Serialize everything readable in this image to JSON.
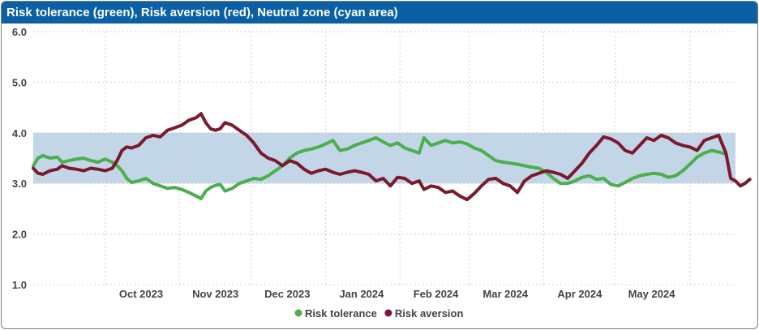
{
  "chart_data": {
    "type": "line",
    "title": "Risk tolerance (green), Risk aversion (red), Neutral zone (cyan area)",
    "ylim": [
      1.0,
      6.0
    ],
    "y_ticks": [
      "1.0",
      "2.0",
      "3.0",
      "4.0",
      "5.0",
      "6.0"
    ],
    "x_ticks": [
      "Oct 2023",
      "Nov 2023",
      "Dec 2023",
      "Jan 2024",
      "Feb 2024",
      "Mar 2024",
      "Apr 2024",
      "May 2024"
    ],
    "x_start": "2023-09-01",
    "x_end": "2024-06-20",
    "neutral_zone": [
      3.0,
      4.0
    ],
    "grid": true,
    "legend_position": "bottom",
    "series": [
      {
        "name": "Risk tolerance",
        "color": "#4cae4c",
        "points": [
          [
            "2023-09-01",
            3.35
          ],
          [
            "2023-09-03",
            3.5
          ],
          [
            "2023-09-05",
            3.55
          ],
          [
            "2023-09-08",
            3.5
          ],
          [
            "2023-09-11",
            3.52
          ],
          [
            "2023-09-13",
            3.42
          ],
          [
            "2023-09-16",
            3.45
          ],
          [
            "2023-09-19",
            3.48
          ],
          [
            "2023-09-22",
            3.5
          ],
          [
            "2023-09-25",
            3.45
          ],
          [
            "2023-09-28",
            3.42
          ],
          [
            "2023-10-01",
            3.48
          ],
          [
            "2023-10-04",
            3.42
          ],
          [
            "2023-10-06",
            3.35
          ],
          [
            "2023-10-08",
            3.25
          ],
          [
            "2023-10-10",
            3.1
          ],
          [
            "2023-10-12",
            3.02
          ],
          [
            "2023-10-15",
            3.05
          ],
          [
            "2023-10-18",
            3.1
          ],
          [
            "2023-10-21",
            3.0
          ],
          [
            "2023-10-24",
            2.95
          ],
          [
            "2023-10-27",
            2.9
          ],
          [
            "2023-10-30",
            2.92
          ],
          [
            "2023-11-02",
            2.88
          ],
          [
            "2023-11-05",
            2.82
          ],
          [
            "2023-11-08",
            2.75
          ],
          [
            "2023-11-10",
            2.7
          ],
          [
            "2023-11-12",
            2.85
          ],
          [
            "2023-11-14",
            2.92
          ],
          [
            "2023-11-16",
            2.96
          ],
          [
            "2023-11-18",
            2.98
          ],
          [
            "2023-11-20",
            2.85
          ],
          [
            "2023-11-23",
            2.9
          ],
          [
            "2023-11-26",
            3.0
          ],
          [
            "2023-11-29",
            3.05
          ],
          [
            "2023-12-02",
            3.1
          ],
          [
            "2023-12-05",
            3.08
          ],
          [
            "2023-12-08",
            3.15
          ],
          [
            "2023-12-11",
            3.25
          ],
          [
            "2023-12-14",
            3.35
          ],
          [
            "2023-12-17",
            3.5
          ],
          [
            "2023-12-20",
            3.6
          ],
          [
            "2023-12-23",
            3.65
          ],
          [
            "2023-12-26",
            3.68
          ],
          [
            "2023-12-29",
            3.72
          ],
          [
            "2024-01-01",
            3.78
          ],
          [
            "2024-01-04",
            3.85
          ],
          [
            "2024-01-07",
            3.65
          ],
          [
            "2024-01-10",
            3.68
          ],
          [
            "2024-01-13",
            3.75
          ],
          [
            "2024-01-16",
            3.8
          ],
          [
            "2024-01-19",
            3.85
          ],
          [
            "2024-01-22",
            3.9
          ],
          [
            "2024-01-25",
            3.82
          ],
          [
            "2024-01-28",
            3.75
          ],
          [
            "2024-01-31",
            3.8
          ],
          [
            "2024-02-03",
            3.7
          ],
          [
            "2024-02-06",
            3.65
          ],
          [
            "2024-02-09",
            3.6
          ],
          [
            "2024-02-11",
            3.9
          ],
          [
            "2024-02-14",
            3.75
          ],
          [
            "2024-02-17",
            3.8
          ],
          [
            "2024-02-20",
            3.85
          ],
          [
            "2024-02-23",
            3.8
          ],
          [
            "2024-02-26",
            3.82
          ],
          [
            "2024-02-29",
            3.78
          ],
          [
            "2024-03-03",
            3.7
          ],
          [
            "2024-03-06",
            3.65
          ],
          [
            "2024-03-09",
            3.55
          ],
          [
            "2024-03-12",
            3.45
          ],
          [
            "2024-03-15",
            3.42
          ],
          [
            "2024-03-18",
            3.4
          ],
          [
            "2024-03-21",
            3.38
          ],
          [
            "2024-03-24",
            3.35
          ],
          [
            "2024-03-27",
            3.32
          ],
          [
            "2024-03-30",
            3.3
          ],
          [
            "2024-04-02",
            3.22
          ],
          [
            "2024-04-05",
            3.1
          ],
          [
            "2024-04-08",
            3.0
          ],
          [
            "2024-04-11",
            3.0
          ],
          [
            "2024-04-14",
            3.05
          ],
          [
            "2024-04-17",
            3.12
          ],
          [
            "2024-04-20",
            3.15
          ],
          [
            "2024-04-23",
            3.08
          ],
          [
            "2024-04-26",
            3.1
          ],
          [
            "2024-04-29",
            2.98
          ],
          [
            "2024-05-02",
            2.95
          ],
          [
            "2024-05-05",
            3.02
          ],
          [
            "2024-05-08",
            3.1
          ],
          [
            "2024-05-11",
            3.15
          ],
          [
            "2024-05-14",
            3.18
          ],
          [
            "2024-05-17",
            3.2
          ],
          [
            "2024-05-20",
            3.18
          ],
          [
            "2024-05-23",
            3.12
          ],
          [
            "2024-05-26",
            3.15
          ],
          [
            "2024-05-29",
            3.25
          ],
          [
            "2024-06-01",
            3.38
          ],
          [
            "2024-06-04",
            3.52
          ],
          [
            "2024-06-07",
            3.6
          ],
          [
            "2024-06-10",
            3.65
          ],
          [
            "2024-06-13",
            3.62
          ],
          [
            "2024-06-16",
            3.58
          ]
        ]
      },
      {
        "name": "Risk aversion",
        "color": "#7b1a2e",
        "points": [
          [
            "2023-09-01",
            3.3
          ],
          [
            "2023-09-03",
            3.2
          ],
          [
            "2023-09-05",
            3.18
          ],
          [
            "2023-09-08",
            3.25
          ],
          [
            "2023-09-11",
            3.28
          ],
          [
            "2023-09-13",
            3.35
          ],
          [
            "2023-09-16",
            3.3
          ],
          [
            "2023-09-19",
            3.28
          ],
          [
            "2023-09-22",
            3.25
          ],
          [
            "2023-09-25",
            3.3
          ],
          [
            "2023-09-28",
            3.28
          ],
          [
            "2023-10-01",
            3.25
          ],
          [
            "2023-10-04",
            3.3
          ],
          [
            "2023-10-06",
            3.45
          ],
          [
            "2023-10-08",
            3.65
          ],
          [
            "2023-10-10",
            3.72
          ],
          [
            "2023-10-12",
            3.7
          ],
          [
            "2023-10-15",
            3.75
          ],
          [
            "2023-10-18",
            3.9
          ],
          [
            "2023-10-21",
            3.95
          ],
          [
            "2023-10-24",
            3.92
          ],
          [
            "2023-10-27",
            4.05
          ],
          [
            "2023-10-30",
            4.1
          ],
          [
            "2023-11-02",
            4.15
          ],
          [
            "2023-11-05",
            4.25
          ],
          [
            "2023-11-08",
            4.3
          ],
          [
            "2023-11-10",
            4.38
          ],
          [
            "2023-11-12",
            4.2
          ],
          [
            "2023-11-14",
            4.08
          ],
          [
            "2023-11-16",
            4.05
          ],
          [
            "2023-11-18",
            4.08
          ],
          [
            "2023-11-20",
            4.2
          ],
          [
            "2023-11-23",
            4.15
          ],
          [
            "2023-11-26",
            4.05
          ],
          [
            "2023-11-29",
            3.95
          ],
          [
            "2023-12-02",
            3.8
          ],
          [
            "2023-12-05",
            3.6
          ],
          [
            "2023-12-08",
            3.5
          ],
          [
            "2023-12-11",
            3.45
          ],
          [
            "2023-12-14",
            3.35
          ],
          [
            "2023-12-17",
            3.45
          ],
          [
            "2023-12-20",
            3.4
          ],
          [
            "2023-12-23",
            3.28
          ],
          [
            "2023-12-26",
            3.2
          ],
          [
            "2023-12-29",
            3.25
          ],
          [
            "2024-01-01",
            3.28
          ],
          [
            "2024-01-04",
            3.22
          ],
          [
            "2024-01-07",
            3.18
          ],
          [
            "2024-01-10",
            3.22
          ],
          [
            "2024-01-13",
            3.25
          ],
          [
            "2024-01-16",
            3.22
          ],
          [
            "2024-01-19",
            3.18
          ],
          [
            "2024-01-22",
            3.05
          ],
          [
            "2024-01-25",
            3.1
          ],
          [
            "2024-01-28",
            2.95
          ],
          [
            "2024-01-31",
            3.12
          ],
          [
            "2024-02-03",
            3.1
          ],
          [
            "2024-02-06",
            3.0
          ],
          [
            "2024-02-09",
            3.05
          ],
          [
            "2024-02-11",
            2.88
          ],
          [
            "2024-02-14",
            2.95
          ],
          [
            "2024-02-17",
            2.92
          ],
          [
            "2024-02-20",
            2.82
          ],
          [
            "2024-02-23",
            2.85
          ],
          [
            "2024-02-26",
            2.75
          ],
          [
            "2024-02-29",
            2.68
          ],
          [
            "2024-03-03",
            2.8
          ],
          [
            "2024-03-06",
            2.95
          ],
          [
            "2024-03-09",
            3.08
          ],
          [
            "2024-03-12",
            3.1
          ],
          [
            "2024-03-15",
            3.0
          ],
          [
            "2024-03-18",
            2.95
          ],
          [
            "2024-03-21",
            2.82
          ],
          [
            "2024-03-24",
            3.05
          ],
          [
            "2024-03-27",
            3.15
          ],
          [
            "2024-03-30",
            3.2
          ],
          [
            "2024-04-02",
            3.25
          ],
          [
            "2024-04-05",
            3.22
          ],
          [
            "2024-04-08",
            3.18
          ],
          [
            "2024-04-11",
            3.1
          ],
          [
            "2024-04-14",
            3.25
          ],
          [
            "2024-04-17",
            3.4
          ],
          [
            "2024-04-20",
            3.6
          ],
          [
            "2024-04-23",
            3.75
          ],
          [
            "2024-04-26",
            3.92
          ],
          [
            "2024-04-29",
            3.88
          ],
          [
            "2024-05-02",
            3.8
          ],
          [
            "2024-05-05",
            3.65
          ],
          [
            "2024-05-08",
            3.6
          ],
          [
            "2024-05-11",
            3.75
          ],
          [
            "2024-05-14",
            3.9
          ],
          [
            "2024-05-17",
            3.85
          ],
          [
            "2024-05-20",
            3.95
          ],
          [
            "2024-05-23",
            3.9
          ],
          [
            "2024-05-26",
            3.8
          ],
          [
            "2024-05-29",
            3.75
          ],
          [
            "2024-06-01",
            3.72
          ],
          [
            "2024-06-04",
            3.65
          ],
          [
            "2024-06-07",
            3.85
          ],
          [
            "2024-06-10",
            3.9
          ],
          [
            "2024-06-13",
            3.95
          ],
          [
            "2024-06-16",
            3.6
          ],
          [
            "2024-06-18",
            3.1
          ],
          [
            "2024-06-20",
            3.05
          ],
          [
            "2024-06-22",
            2.95
          ],
          [
            "2024-06-24",
            3.0
          ],
          [
            "2024-06-26",
            3.08
          ]
        ]
      }
    ]
  }
}
